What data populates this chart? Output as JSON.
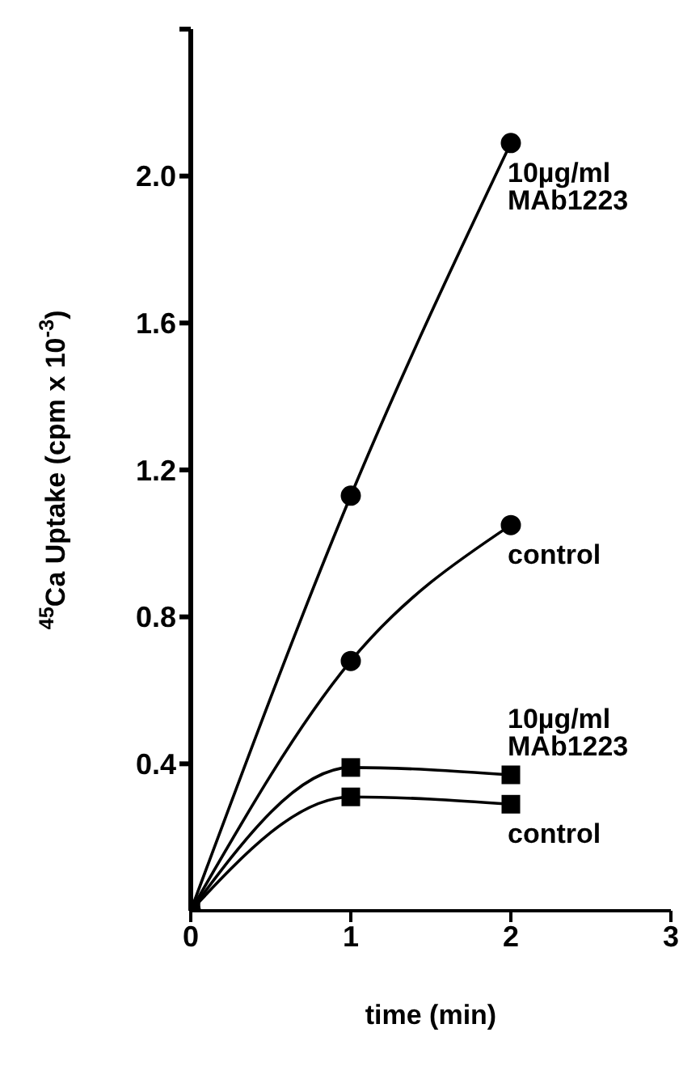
{
  "chart_data": {
    "type": "line",
    "xlabel": "time (min)",
    "ylabel": "$^{45}$Ca Uptake (cpm x 10$^{-3}$)",
    "x": [
      0,
      1,
      2
    ],
    "series": [
      {
        "name": "10µg/ml MAb1223",
        "color": "#000000",
        "marker": "circle",
        "values": [
          0,
          1.13,
          2.09
        ]
      },
      {
        "name": "control",
        "color": "#000000",
        "marker": "circle",
        "values": [
          0,
          0.68,
          1.05
        ]
      },
      {
        "name": "10µg/ml MAb1223",
        "color": "#000000",
        "marker": "square",
        "values": [
          0,
          0.39,
          0.37
        ]
      },
      {
        "name": "control",
        "color": "#000000",
        "marker": "square",
        "values": [
          0,
          0.31,
          0.29
        ]
      }
    ],
    "xlim": [
      0,
      3
    ],
    "xticks": [
      0,
      1,
      2,
      3
    ],
    "ylim": [
      0,
      2.4
    ],
    "yticks": [
      0.4,
      0.8,
      1.2,
      1.6,
      {
        "value": 2.0,
        "label": "2.0"
      },
      {
        "value": 2.4,
        "label": null
      }
    ],
    "grid": false,
    "line_style": "solid"
  }
}
